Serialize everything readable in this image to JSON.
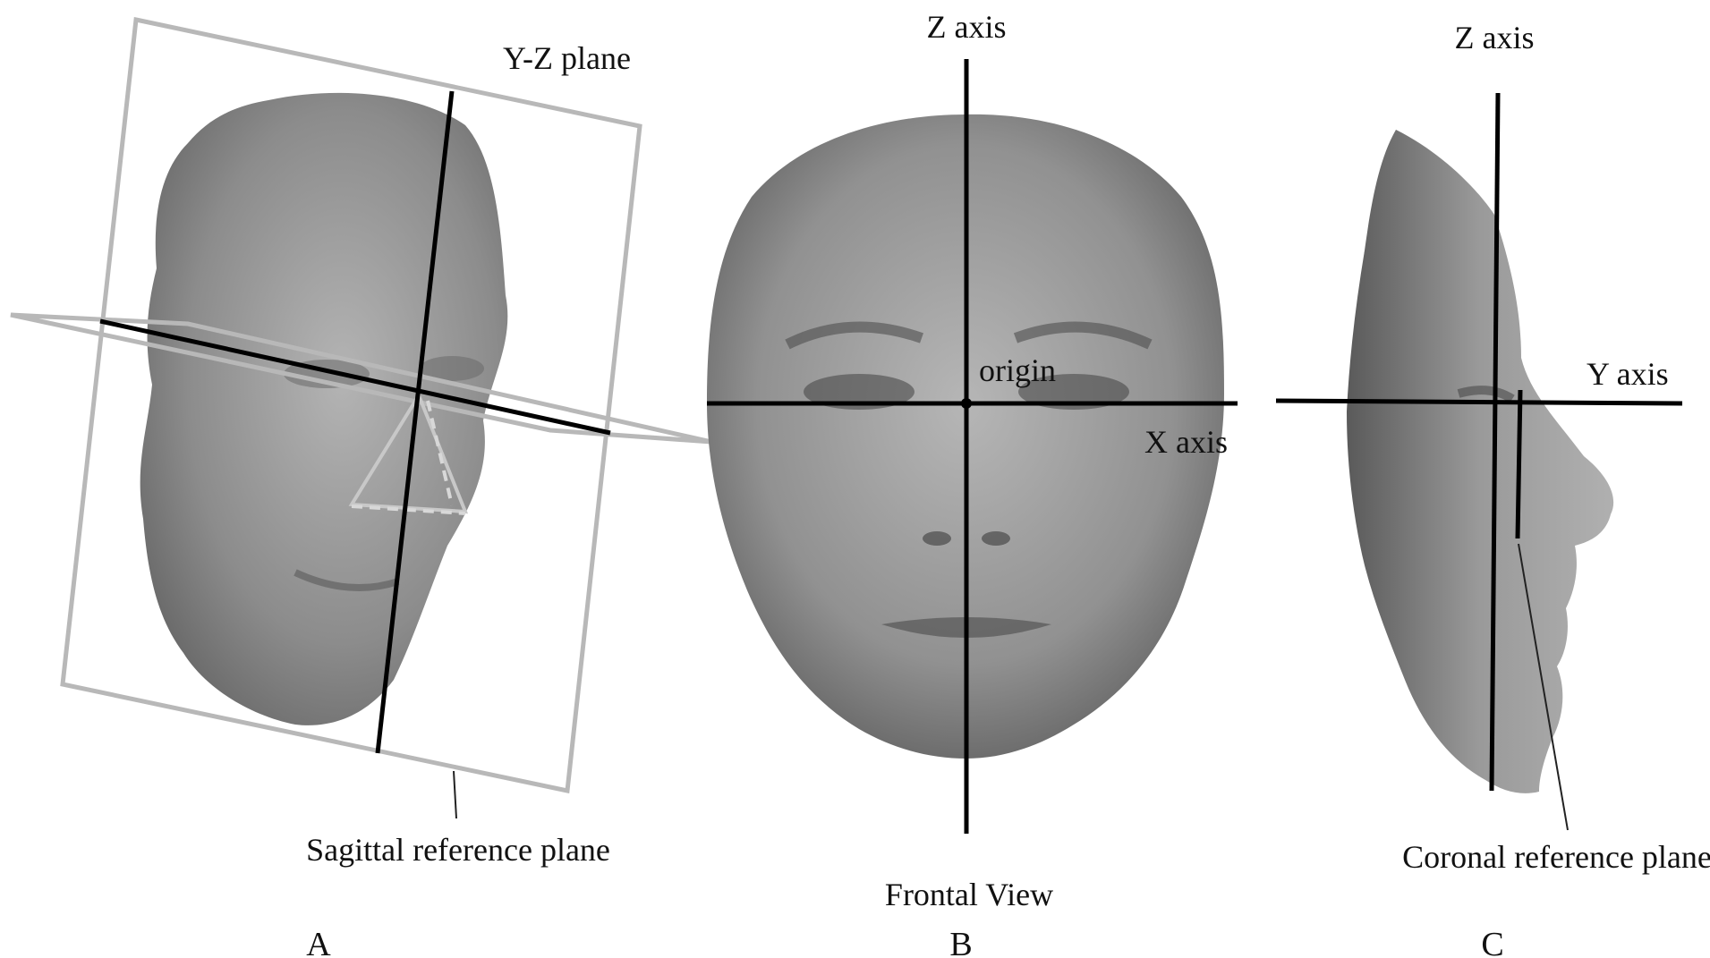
{
  "panel_a": {
    "plane_label": "Y-Z plane",
    "reference_label": "Sagittal reference plane",
    "panel_letter": "A"
  },
  "panel_b": {
    "z_axis_label": "Z axis",
    "origin_label": "origin",
    "x_axis_label": "X axis",
    "view_label": "Frontal View",
    "panel_letter": "B"
  },
  "panel_c": {
    "z_axis_label": "Z axis",
    "y_axis_label": "Y axis",
    "reference_label": "Coronal reference plane",
    "panel_letter": "C"
  },
  "colors": {
    "axis": "#000000",
    "plane_outline": "#b8b8b8",
    "face_light": "#a9a9a9",
    "face_dark": "#5a5a5a",
    "background": "#ffffff"
  }
}
